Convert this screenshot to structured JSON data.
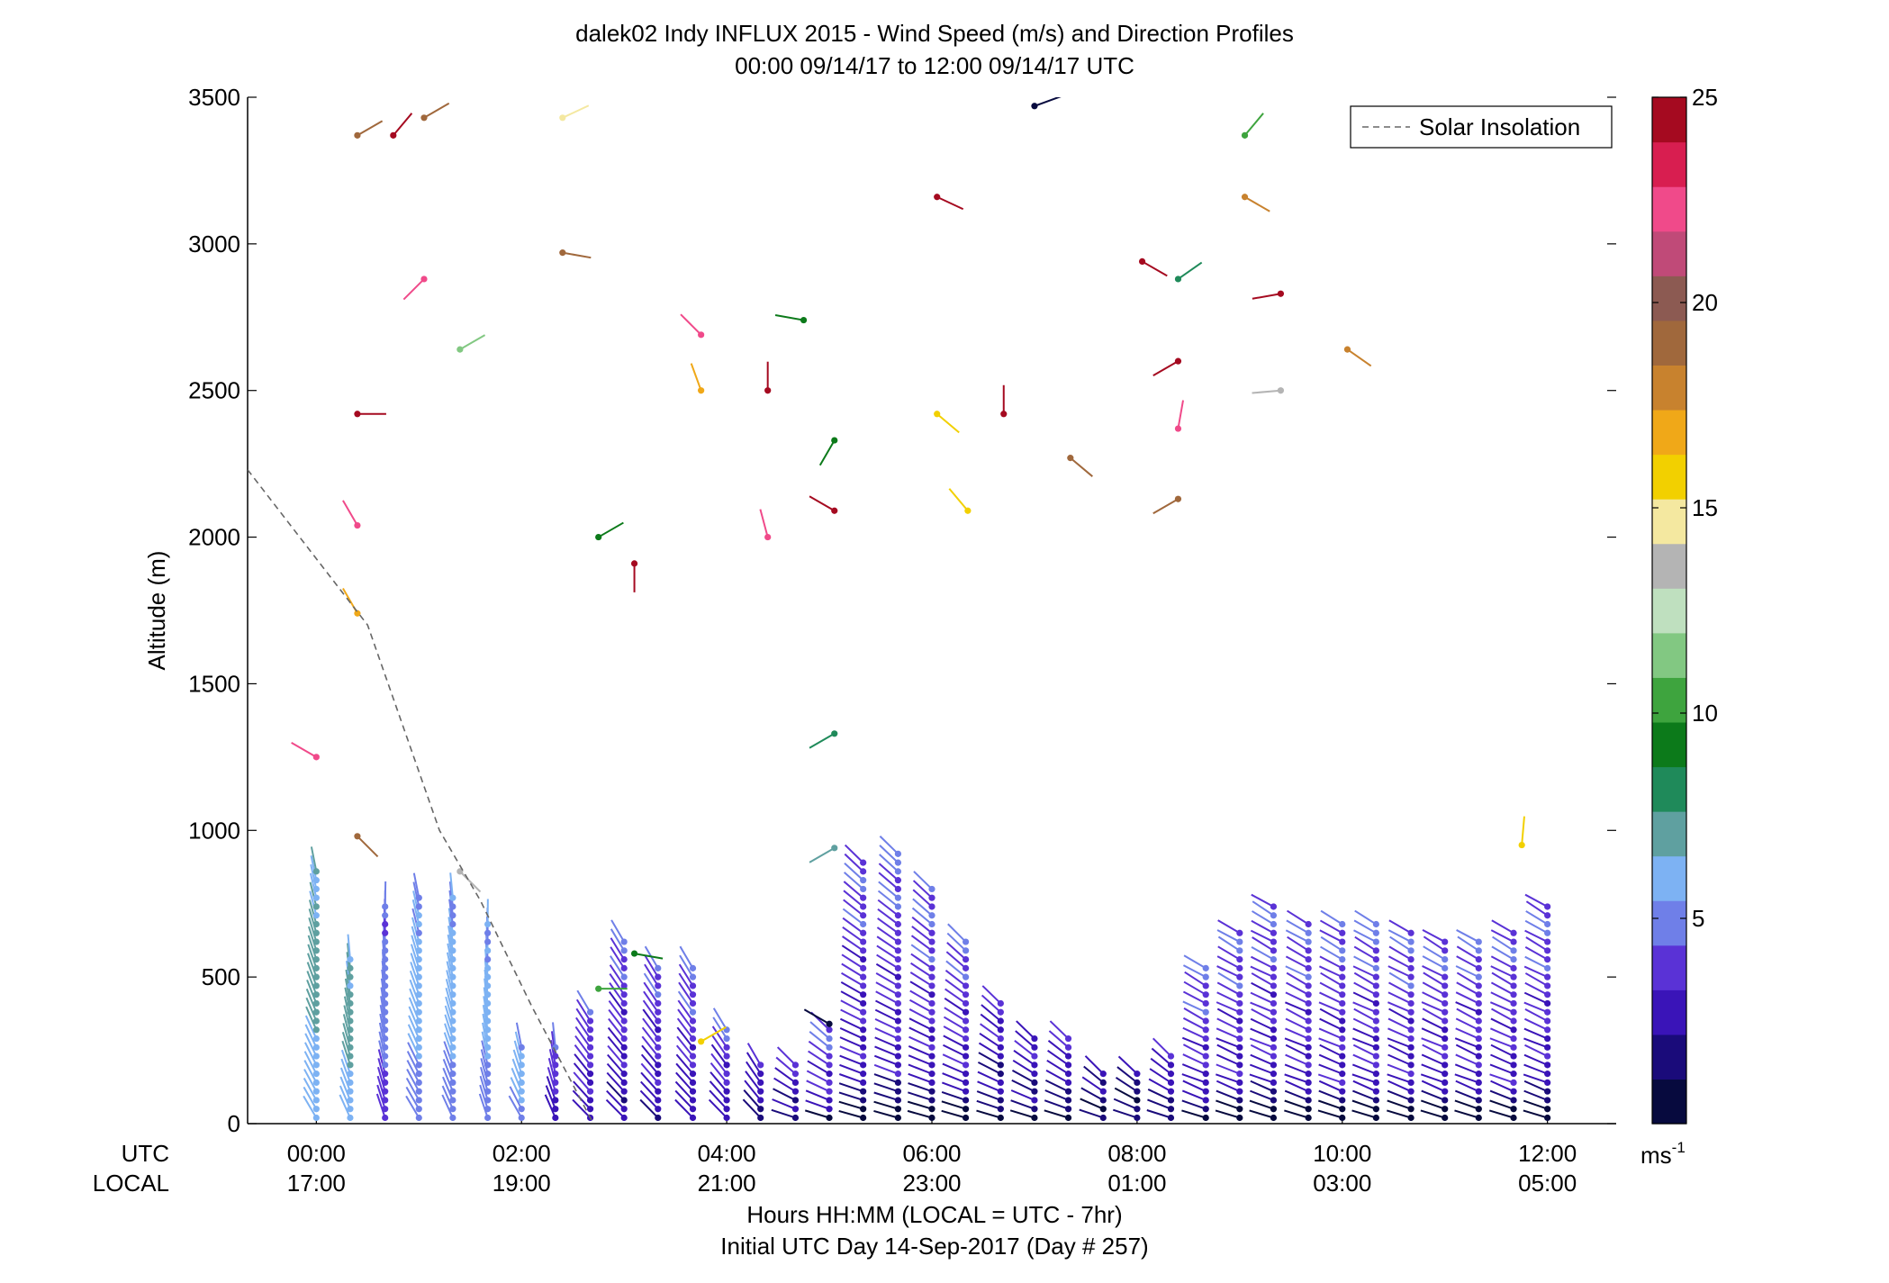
{
  "chart_data": {
    "type": "scatter",
    "title": "dalek02 Indy INFLUX 2015 - Wind Speed (m/s) and Direction Profiles",
    "subtitle": "00:00 09/14/17 to 12:00 09/14/17  UTC",
    "ylabel": "Altitude (m)",
    "xlabel_line1": "Hours HH:MM  (LOCAL = UTC - 7hr)",
    "xlabel_line2": "Initial UTC Day 14-Sep-2017 (Day # 257)",
    "xlim": [
      -0.67,
      12.67
    ],
    "ylim": [
      0,
      3500
    ],
    "y_ticks": [
      0,
      500,
      1000,
      1500,
      2000,
      2500,
      3000,
      3500
    ],
    "x_ticks": [
      0,
      2,
      4,
      6,
      8,
      10,
      12
    ],
    "utc_row_label": "UTC",
    "local_row_label": "LOCAL",
    "utc_tick_labels": [
      "00:00",
      "02:00",
      "04:00",
      "06:00",
      "08:00",
      "10:00",
      "12:00"
    ],
    "local_tick_labels": [
      "17:00",
      "19:00",
      "21:00",
      "23:00",
      "01:00",
      "03:00",
      "05:00"
    ],
    "legend": {
      "label": "Solar Insolation",
      "placement": "top-right"
    },
    "solar_insolation_line": {
      "x": [
        -0.67,
        0.5,
        1.2,
        1.6,
        2.1,
        2.7
      ],
      "y": [
        2230,
        1700,
        1000,
        760,
        400,
        0
      ]
    },
    "colorbar": {
      "range": [
        0,
        25
      ],
      "ticks": [
        5,
        10,
        15,
        20,
        25
      ],
      "unit_label": "ms",
      "unit_exponent": "-1",
      "colors": [
        "#070a3e",
        "#1a0b7a",
        "#3a14b8",
        "#5a32d6",
        "#6f7fe8",
        "#7db2f3",
        "#5fa0a0",
        "#1f8a5a",
        "#0c7a1a",
        "#3ea43e",
        "#82c882",
        "#bfe0bf",
        "#b4b4b4",
        "#f4e8a0",
        "#f2d000",
        "#f0a818",
        "#c8822e",
        "#a0683c",
        "#8c5a52",
        "#c04a78",
        "#f04a8a",
        "#d81e50",
        "#a50a20"
      ]
    },
    "profile_times": [
      0,
      0.33,
      0.67,
      1,
      1.33,
      1.67,
      2,
      2.33,
      2.67,
      3,
      3.33,
      3.67,
      4,
      4.33,
      4.67,
      5,
      5.33,
      5.67,
      6,
      6.33,
      6.67,
      7,
      7.33,
      7.67,
      8,
      8.33,
      8.67,
      9,
      9.33,
      9.67,
      10,
      10.33,
      10.67,
      11,
      11.33,
      11.67,
      12
    ],
    "profile_tops": [
      870,
      560,
      740,
      780,
      790,
      700,
      260,
      270,
      400,
      630,
      540,
      540,
      340,
      200,
      200,
      330,
      910,
      940,
      820,
      620,
      420,
      300,
      300,
      170,
      180,
      230,
      530,
      650,
      740,
      680,
      690,
      680,
      660,
      630,
      640,
      660,
      740
    ],
    "profile_base_speed": [
      5,
      5,
      3,
      4,
      4,
      4,
      4,
      3,
      3,
      3,
      3,
      3,
      3,
      2,
      2,
      3,
      3,
      3,
      3,
      3,
      2,
      2,
      2,
      1,
      1,
      2,
      3,
      3,
      3,
      3,
      3,
      3,
      3,
      3,
      3,
      3,
      3
    ],
    "scattered_points": [
      {
        "x": 0.0,
        "y": 1250,
        "speed": 22,
        "dir": 300
      },
      {
        "x": 0.4,
        "y": 2420,
        "speed": 24,
        "dir": 90
      },
      {
        "x": 0.4,
        "y": 2040,
        "speed": 22,
        "dir": 330
      },
      {
        "x": 0.4,
        "y": 1740,
        "speed": 17,
        "dir": 330
      },
      {
        "x": 0.4,
        "y": 980,
        "speed": 19,
        "dir": 135
      },
      {
        "x": 0.4,
        "y": 3370,
        "speed": 19,
        "dir": 60
      },
      {
        "x": 0.75,
        "y": 3370,
        "speed": 24,
        "dir": 40
      },
      {
        "x": 1.05,
        "y": 3430,
        "speed": 19,
        "dir": 60
      },
      {
        "x": 1.05,
        "y": 2880,
        "speed": 22,
        "dir": 225
      },
      {
        "x": 1.4,
        "y": 2640,
        "speed": 11,
        "dir": 60
      },
      {
        "x": 2.4,
        "y": 3430,
        "speed": 15,
        "dir": 65
      },
      {
        "x": 2.4,
        "y": 2970,
        "speed": 19,
        "dir": 100
      },
      {
        "x": 2.75,
        "y": 2000,
        "speed": 9,
        "dir": 60
      },
      {
        "x": 3.1,
        "y": 1910,
        "speed": 24,
        "dir": 180
      },
      {
        "x": 3.75,
        "y": 2690,
        "speed": 22,
        "dir": 315
      },
      {
        "x": 3.75,
        "y": 2500,
        "speed": 17,
        "dir": 340
      },
      {
        "x": 4.4,
        "y": 2500,
        "speed": 24,
        "dir": 0
      },
      {
        "x": 4.4,
        "y": 2000,
        "speed": 22,
        "dir": 345
      },
      {
        "x": 4.75,
        "y": 2740,
        "speed": 9,
        "dir": 280
      },
      {
        "x": 5.05,
        "y": 2330,
        "speed": 9,
        "dir": 210
      },
      {
        "x": 5.05,
        "y": 2090,
        "speed": 24,
        "dir": 300
      },
      {
        "x": 5.05,
        "y": 1330,
        "speed": 8,
        "dir": 240
      },
      {
        "x": 5.05,
        "y": 940,
        "speed": 7,
        "dir": 240
      },
      {
        "x": 6.05,
        "y": 3160,
        "speed": 24,
        "dir": 115
      },
      {
        "x": 6.05,
        "y": 2420,
        "speed": 16,
        "dir": 130
      },
      {
        "x": 6.35,
        "y": 2090,
        "speed": 16,
        "dir": 320
      },
      {
        "x": 6.7,
        "y": 2420,
        "speed": 24,
        "dir": 0
      },
      {
        "x": 7.0,
        "y": 3470,
        "speed": 1,
        "dir": 70
      },
      {
        "x": 7.35,
        "y": 2270,
        "speed": 19,
        "dir": 130
      },
      {
        "x": 8.05,
        "y": 2940,
        "speed": 24,
        "dir": 120
      },
      {
        "x": 8.4,
        "y": 2880,
        "speed": 8,
        "dir": 55
      },
      {
        "x": 8.4,
        "y": 2600,
        "speed": 24,
        "dir": 240
      },
      {
        "x": 8.4,
        "y": 2370,
        "speed": 22,
        "dir": 10
      },
      {
        "x": 8.4,
        "y": 2130,
        "speed": 19,
        "dir": 240
      },
      {
        "x": 9.05,
        "y": 3370,
        "speed": 10,
        "dir": 40
      },
      {
        "x": 9.05,
        "y": 3160,
        "speed": 18,
        "dir": 120
      },
      {
        "x": 9.4,
        "y": 2830,
        "speed": 24,
        "dir": 260
      },
      {
        "x": 9.4,
        "y": 2500,
        "speed": 14,
        "dir": 265
      },
      {
        "x": 10.05,
        "y": 2640,
        "speed": 18,
        "dir": 125
      },
      {
        "x": 11.75,
        "y": 950,
        "speed": 16,
        "dir": 5
      },
      {
        "x": 1.4,
        "y": 860,
        "speed": 14,
        "dir": 135
      },
      {
        "x": 2.75,
        "y": 460,
        "speed": 10,
        "dir": 90
      },
      {
        "x": 3.1,
        "y": 580,
        "speed": 9,
        "dir": 100
      },
      {
        "x": 3.75,
        "y": 280,
        "speed": 16,
        "dir": 60
      },
      {
        "x": 5.0,
        "y": 340,
        "speed": 1,
        "dir": 300
      }
    ]
  }
}
